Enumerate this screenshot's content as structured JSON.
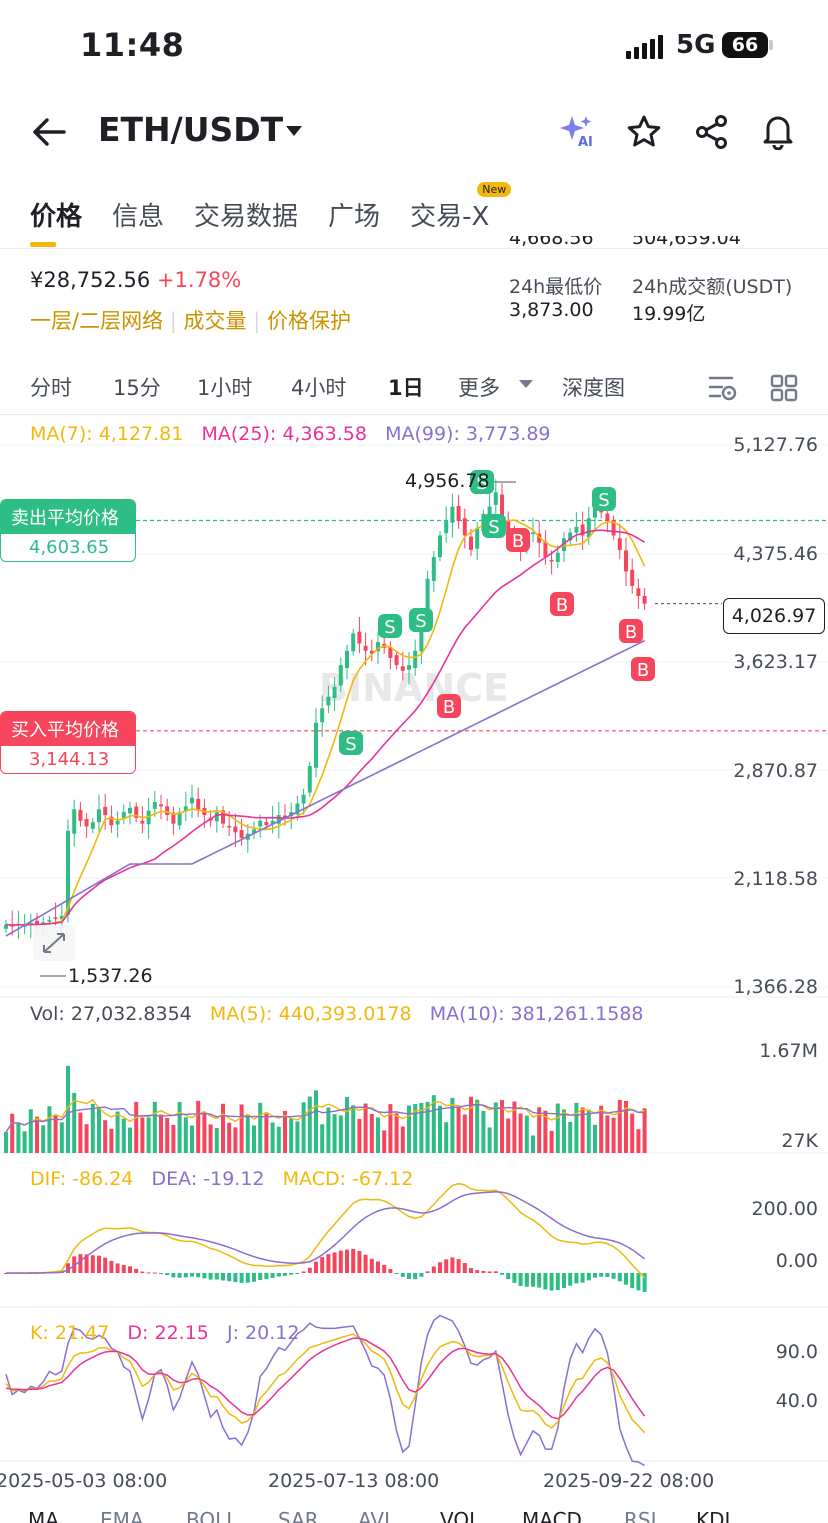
{
  "status": {
    "time": "11:48",
    "network": "5G",
    "battery": "66"
  },
  "header": {
    "pair": "ETH/USDT"
  },
  "tabs": [
    {
      "label": "价格"
    },
    {
      "label": "信息"
    },
    {
      "label": "交易数据"
    },
    {
      "label": "广场"
    },
    {
      "label": "交易-X",
      "badge": "New"
    }
  ],
  "summary": {
    "cny_price": "¥28,752.56",
    "change": "+1.78%",
    "links": [
      "一层/二层网络",
      "成交量",
      "价格保护"
    ],
    "top_cut_left": "4,668.56",
    "top_cut_right": "504,659.04",
    "low_label": "24h最低价",
    "low_value": "3,873.00",
    "vol_label": "24h成交额(USDT)",
    "vol_value": "19.99亿"
  },
  "intervals": [
    "分时",
    "15分",
    "1小时",
    "4小时",
    "1日",
    "更多",
    "深度图"
  ],
  "ma_legend": {
    "ma7": "MA(7): 4,127.81",
    "ma25": "MA(25): 4,363.58",
    "ma99": "MA(99): 3,773.89"
  },
  "price_axis": [
    "5,127.76",
    "4,375.46",
    "3,623.17",
    "2,870.87",
    "2,118.58",
    "1,366.28"
  ],
  "current_price": "4,026.97",
  "high_marker": "4,956.78",
  "low_marker": "1,537.26",
  "sell_avg": {
    "label": "卖出平均价格",
    "value": "4,603.65"
  },
  "buy_avg": {
    "label": "买入平均价格",
    "value": "3,144.13"
  },
  "watermark": "BINANCE",
  "vol_legend": {
    "vol": "Vol: 27,032.8354",
    "ma5": "MA(5): 440,393.0178",
    "ma10": "MA(10): 381,261.1588"
  },
  "vol_axis": [
    "1.67M",
    "27K"
  ],
  "macd_legend": {
    "dif": "DIF: -86.24",
    "dea": "DEA: -19.12",
    "macd": "MACD: -67.12"
  },
  "macd_axis": [
    "200.00",
    "0.00"
  ],
  "kdj_legend": {
    "k": "K: 21.47",
    "d": "D: 22.15",
    "j": "J: 20.12"
  },
  "kdj_axis": [
    "90.0",
    "40.0"
  ],
  "x_axis": [
    "2025-05-03 08:00",
    "2025-07-13 08:00",
    "2025-09-22 08:00"
  ],
  "bottom_tabs": [
    "MA",
    "EMA",
    "BOLL",
    "SAR",
    "AVL",
    "VOL",
    "MACD",
    "RSI",
    "KDJ"
  ],
  "trade_markers": {
    "sell": "S",
    "buy": "B"
  },
  "colors": {
    "up": "#f6465d",
    "down": "#2ebd85",
    "ma7": "#f0b90b",
    "ma25": "#e8339c",
    "ma99": "#8a6fcf",
    "accent": "#f0b90b"
  },
  "chart_data": {
    "type": "candlestick",
    "y_range": [
      1366.28,
      5127.76
    ],
    "daily_closes": [
      1800,
      1790,
      1805,
      1795,
      1810,
      1800,
      1815,
      1830,
      1845,
      1860,
      2450,
      2600,
      2520,
      2480,
      2510,
      2600,
      2560,
      2490,
      2520,
      2580,
      2610,
      2540,
      2500,
      2590,
      2650,
      2620,
      2560,
      2500,
      2580,
      2620,
      2680,
      2600,
      2560,
      2520,
      2580,
      2500,
      2480,
      2440,
      2400,
      2430,
      2460,
      2520,
      2490,
      2520,
      2560,
      2540,
      2580,
      2640,
      2700,
      2900,
      3200,
      3300,
      3380,
      3450,
      3600,
      3700,
      3820,
      3750,
      3700,
      3680,
      3760,
      3720,
      3650,
      3600,
      3560,
      3600,
      3700,
      3900,
      4200,
      4350,
      4500,
      4600,
      4700,
      4600,
      4500,
      4400,
      4550,
      4650,
      4700,
      4800,
      4600,
      4500,
      4450,
      4400,
      4500,
      4520,
      4450,
      4350,
      4320,
      4380,
      4480,
      4520,
      4560,
      4500,
      4620,
      4700,
      4660,
      4600,
      4500,
      4400,
      4250,
      4150,
      4080,
      4027
    ]
  }
}
